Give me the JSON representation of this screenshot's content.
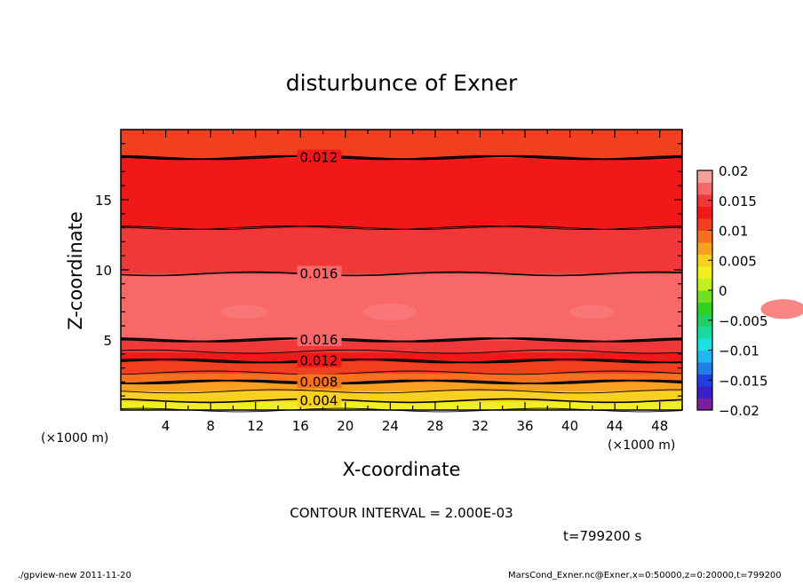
{
  "chart_data": {
    "type": "heatmap",
    "title": "disturbunce of Exner",
    "xlabel": "X-coordinate",
    "ylabel": "Z-coordinate",
    "x_unit": "(×1000 m)",
    "y_unit": "(×1000 m)",
    "xlim": [
      0,
      50
    ],
    "ylim": [
      0,
      20
    ],
    "xticks": [
      4,
      8,
      12,
      16,
      20,
      24,
      28,
      32,
      36,
      40,
      44,
      48
    ],
    "yticks": [
      5,
      10,
      15
    ],
    "contour_interval_text": "CONTOUR INTERVAL = 2.000E-03",
    "contour_interval": 0.002,
    "time_text": "t=799200 s",
    "contour_labels": [
      "0.012",
      "0.016",
      "0.016",
      "0.012",
      "0.008",
      "0.004"
    ],
    "colorbar": {
      "range": [
        -0.02,
        0.02
      ],
      "ticks": [
        "0.02",
        "0.015",
        "0.01",
        "0.005",
        "0",
        "−0.005",
        "−0.01",
        "−0.015",
        "−0.02"
      ],
      "colors": [
        "#7a1fa0",
        "#3b1fc8",
        "#1f3fe0",
        "#1f7fe8",
        "#1fb8f0",
        "#1fe0e0",
        "#1fd8a0",
        "#20d060",
        "#30d020",
        "#70e020",
        "#c0f020",
        "#f0f020",
        "#f8d020",
        "#f8a020",
        "#f87020",
        "#f04020",
        "#f01818",
        "#f03838",
        "#f86868",
        "#f8a0a0"
      ]
    },
    "profile": {
      "z": [
        0,
        0.5,
        1,
        1.5,
        2,
        2.5,
        3,
        3.5,
        4,
        4.5,
        5,
        5.5,
        6,
        7,
        8,
        9,
        10,
        11,
        12,
        13,
        14,
        15,
        16,
        17,
        18,
        19,
        20
      ],
      "value": [
        0.002,
        0.0035,
        0.005,
        0.0065,
        0.008,
        0.0095,
        0.011,
        0.012,
        0.0135,
        0.015,
        0.016,
        0.0167,
        0.0172,
        0.0178,
        0.0176,
        0.0165,
        0.0158,
        0.015,
        0.0145,
        0.014,
        0.0136,
        0.0132,
        0.0128,
        0.0124,
        0.012,
        0.0116,
        0.0112
      ]
    }
  },
  "footer": {
    "left": "./gpview-new   2011-11-20",
    "right": "MarsCond_Exner.nc@Exner,x=0:50000,z=0:20000,t=799200"
  }
}
